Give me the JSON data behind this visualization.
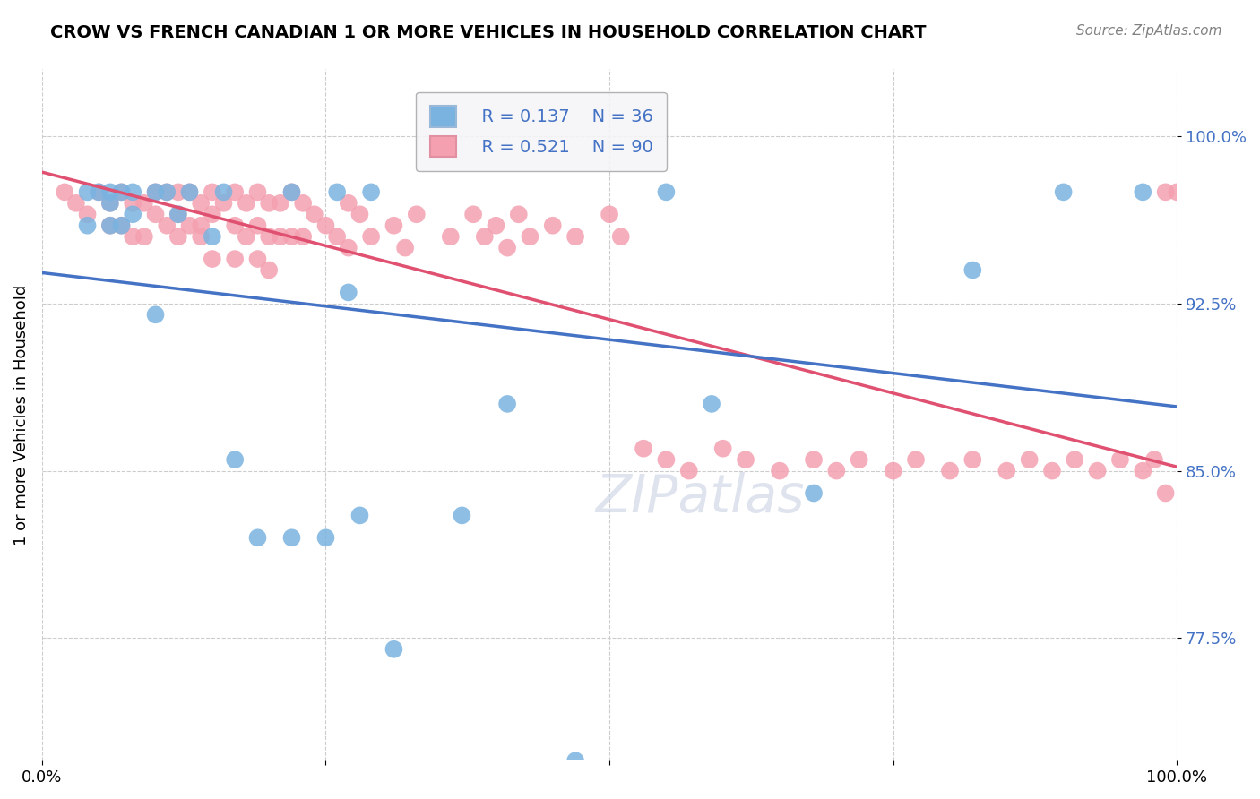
{
  "title": "CROW VS FRENCH CANADIAN 1 OR MORE VEHICLES IN HOUSEHOLD CORRELATION CHART",
  "source": "Source: ZipAtlas.com",
  "ylabel": "1 or more Vehicles in Household",
  "xlabel": "",
  "xlim": [
    0.0,
    1.0
  ],
  "ylim": [
    0.72,
    1.03
  ],
  "yticks": [
    0.775,
    0.85,
    0.925,
    1.0
  ],
  "ytick_labels": [
    "77.5%",
    "85.0%",
    "92.5%",
    "100.0%"
  ],
  "xticks": [
    0.0,
    0.25,
    0.5,
    0.75,
    1.0
  ],
  "xtick_labels": [
    "0.0%",
    "",
    "",
    "",
    "100.0%"
  ],
  "crow_color": "#7ab3e0",
  "french_color": "#f4a0b0",
  "crow_line_color": "#4472c4",
  "french_line_color": "#e05070",
  "crow_R": 0.137,
  "crow_N": 36,
  "french_R": 0.521,
  "french_N": 90,
  "legend_box_color": "#e8e8f0",
  "watermark": "ZIPatlas",
  "crow_x": [
    0.04,
    0.04,
    0.05,
    0.06,
    0.06,
    0.06,
    0.07,
    0.07,
    0.08,
    0.08,
    0.1,
    0.1,
    0.11,
    0.12,
    0.13,
    0.15,
    0.16,
    0.17,
    0.19,
    0.22,
    0.22,
    0.25,
    0.26,
    0.27,
    0.28,
    0.29,
    0.31,
    0.37,
    0.41,
    0.47,
    0.55,
    0.59,
    0.68,
    0.82,
    0.9,
    0.97
  ],
  "crow_y": [
    0.96,
    0.975,
    0.975,
    0.975,
    0.97,
    0.96,
    0.975,
    0.96,
    0.975,
    0.965,
    0.975,
    0.92,
    0.975,
    0.965,
    0.975,
    0.955,
    0.975,
    0.855,
    0.82,
    0.975,
    0.82,
    0.82,
    0.975,
    0.93,
    0.83,
    0.975,
    0.77,
    0.83,
    0.88,
    0.72,
    0.975,
    0.88,
    0.84,
    0.94,
    0.975,
    0.975
  ],
  "french_x": [
    0.02,
    0.03,
    0.04,
    0.05,
    0.06,
    0.06,
    0.07,
    0.07,
    0.08,
    0.08,
    0.09,
    0.09,
    0.1,
    0.1,
    0.11,
    0.11,
    0.12,
    0.12,
    0.12,
    0.13,
    0.13,
    0.14,
    0.14,
    0.14,
    0.15,
    0.15,
    0.15,
    0.16,
    0.17,
    0.17,
    0.17,
    0.18,
    0.18,
    0.19,
    0.19,
    0.19,
    0.2,
    0.2,
    0.2,
    0.21,
    0.21,
    0.22,
    0.22,
    0.23,
    0.23,
    0.24,
    0.25,
    0.26,
    0.27,
    0.27,
    0.28,
    0.29,
    0.31,
    0.32,
    0.33,
    0.36,
    0.38,
    0.39,
    0.4,
    0.41,
    0.42,
    0.43,
    0.45,
    0.47,
    0.5,
    0.51,
    0.53,
    0.55,
    0.57,
    0.6,
    0.62,
    0.65,
    0.68,
    0.7,
    0.72,
    0.75,
    0.77,
    0.8,
    0.82,
    0.85,
    0.87,
    0.89,
    0.91,
    0.93,
    0.95,
    0.97,
    0.98,
    0.99,
    0.99,
    1.0
  ],
  "french_y": [
    0.975,
    0.97,
    0.965,
    0.975,
    0.97,
    0.96,
    0.975,
    0.96,
    0.97,
    0.955,
    0.97,
    0.955,
    0.975,
    0.965,
    0.975,
    0.96,
    0.975,
    0.965,
    0.955,
    0.975,
    0.96,
    0.97,
    0.96,
    0.955,
    0.975,
    0.965,
    0.945,
    0.97,
    0.975,
    0.96,
    0.945,
    0.97,
    0.955,
    0.975,
    0.96,
    0.945,
    0.97,
    0.955,
    0.94,
    0.97,
    0.955,
    0.975,
    0.955,
    0.97,
    0.955,
    0.965,
    0.96,
    0.955,
    0.97,
    0.95,
    0.965,
    0.955,
    0.96,
    0.95,
    0.965,
    0.955,
    0.965,
    0.955,
    0.96,
    0.95,
    0.965,
    0.955,
    0.96,
    0.955,
    0.965,
    0.955,
    0.86,
    0.855,
    0.85,
    0.86,
    0.855,
    0.85,
    0.855,
    0.85,
    0.855,
    0.85,
    0.855,
    0.85,
    0.855,
    0.85,
    0.855,
    0.85,
    0.855,
    0.85,
    0.855,
    0.85,
    0.855,
    0.84,
    0.975,
    0.975
  ]
}
